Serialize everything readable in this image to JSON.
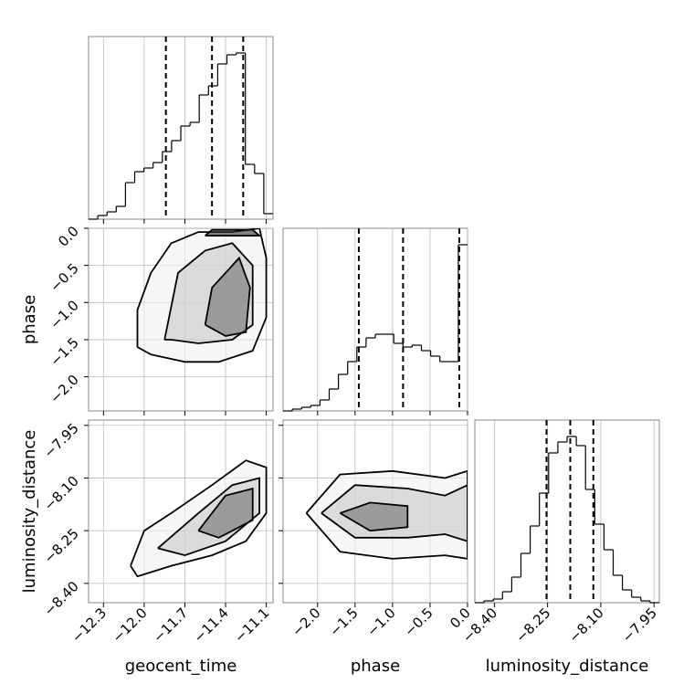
{
  "chart_data": {
    "type": "corner",
    "params": [
      {
        "label": "geocent_time",
        "lim": [
          -12.41,
          -11.05
        ],
        "ticks": [
          {
            "value": -12.3,
            "label": "−12.3"
          },
          {
            "value": -12.0,
            "label": "−12.0"
          },
          {
            "value": -11.7,
            "label": "−11.7"
          },
          {
            "value": -11.4,
            "label": "−11.4"
          },
          {
            "value": -11.1,
            "label": "−11.1"
          }
        ],
        "quantiles": [
          -11.84,
          -11.5,
          -11.27
        ],
        "bins": [
          -12.41,
          -12.342,
          -12.274,
          -12.206,
          -12.138,
          -12.07,
          -12.002,
          -11.934,
          -11.866,
          -11.798,
          -11.73,
          -11.662,
          -11.594,
          -11.526,
          -11.458,
          -11.39,
          -11.322,
          -11.254,
          -11.186,
          -11.118,
          -11.05
        ],
        "counts": [
          0,
          2,
          4,
          7,
          20,
          26,
          28,
          31,
          37,
          43,
          51,
          53,
          68,
          73,
          85,
          90,
          91,
          30,
          25,
          3
        ],
        "hist_ylim": [
          0,
          100
        ]
      },
      {
        "label": "phase",
        "lim": [
          -2.46,
          0
        ],
        "ticks": [
          {
            "value": -2.0,
            "label": "−2.0"
          },
          {
            "value": -1.5,
            "label": "−1.5"
          },
          {
            "value": -1.0,
            "label": "−1.0"
          },
          {
            "value": -0.5,
            "label": "−0.5"
          },
          {
            "value": 0,
            "label": "0.0"
          }
        ],
        "quantiles": [
          -1.45,
          -0.86,
          -0.11
        ],
        "bins": [
          -2.46,
          -2.337,
          -2.214,
          -2.091,
          -1.968,
          -1.845,
          -1.722,
          -1.599,
          -1.476,
          -1.353,
          -1.23,
          -1.107,
          -0.984,
          -0.861,
          -0.738,
          -0.615,
          -0.492,
          -0.369,
          -0.246,
          -0.123,
          0
        ],
        "counts": [
          0,
          1,
          2,
          3,
          6,
          12,
          20,
          27,
          35,
          40,
          42,
          42,
          37,
          35,
          36,
          33,
          30,
          27,
          27,
          91
        ],
        "hist_ylim": [
          0,
          100
        ]
      },
      {
        "label": "luminosity_distance",
        "lim": [
          -8.455,
          -7.935
        ],
        "ticks": [
          {
            "value": -8.4,
            "label": "−8.40"
          },
          {
            "value": -8.25,
            "label": "−8.25"
          },
          {
            "value": -8.1,
            "label": "−8.10"
          },
          {
            "value": -7.95,
            "label": "−7.95"
          }
        ],
        "quantiles": [
          -8.253,
          -8.186,
          -8.121
        ],
        "bins": [
          -8.455,
          -8.429,
          -8.403,
          -8.377,
          -8.351,
          -8.325,
          -8.299,
          -8.273,
          -8.247,
          -8.221,
          -8.195,
          -8.169,
          -8.143,
          -8.117,
          -8.091,
          -8.065,
          -8.039,
          -8.013,
          -7.987,
          -7.961,
          -7.935
        ],
        "counts": [
          0,
          1,
          2,
          6,
          14,
          27,
          42,
          60,
          82,
          88,
          91,
          86,
          62,
          43,
          29,
          15,
          7,
          3,
          1,
          0
        ],
        "hist_ylim": [
          0,
          100
        ]
      }
    ],
    "pairs": [
      {
        "x": 0,
        "y": 1,
        "contours": [
          {
            "x": [
              -12.05,
              -12.05,
              -11.95,
              -11.8,
              -11.6,
              -11.35,
              -11.15,
              -11.1,
              -11.1,
              -11.2,
              -11.45,
              -11.7,
              -11.95,
              -12.05
            ],
            "y": [
              -1.6,
              -1.1,
              -0.6,
              -0.2,
              -0.05,
              -0.05,
              0,
              -0.4,
              -1.2,
              -1.65,
              -1.8,
              -1.8,
              -1.7,
              -1.6
            ]
          },
          {
            "x": [
              -11.85,
              -11.75,
              -11.55,
              -11.35,
              -11.2,
              -11.2,
              -11.35,
              -11.6,
              -11.8,
              -11.85
            ],
            "y": [
              -1.5,
              -0.6,
              -0.3,
              -0.2,
              -0.5,
              -1.3,
              -1.5,
              -1.55,
              -1.5,
              -1.5
            ]
          },
          {
            "x": [
              -11.55,
              -11.5,
              -11.3,
              -11.22,
              -11.25,
              -11.4,
              -11.55
            ],
            "y": [
              -1.3,
              -0.8,
              -0.4,
              -0.8,
              -1.4,
              -1.45,
              -1.3
            ]
          },
          {
            "x": [
              -11.55,
              -11.5,
              -11.2,
              -11.15,
              -11.55
            ],
            "y": [
              -0.1,
              -0.02,
              -0.02,
              -0.1,
              -0.1
            ]
          }
        ]
      },
      {
        "x": 0,
        "y": 2,
        "contours": [
          {
            "x": [
              -12.1,
              -12.0,
              -11.8,
              -11.5,
              -11.25,
              -11.1,
              -11.1,
              -11.25,
              -11.5,
              -11.8,
              -12.05,
              -12.1
            ],
            "y": [
              -8.35,
              -8.25,
              -8.2,
              -8.12,
              -8.05,
              -8.07,
              -8.2,
              -8.28,
              -8.32,
              -8.35,
              -8.38,
              -8.35
            ]
          },
          {
            "x": [
              -11.9,
              -11.6,
              -11.35,
              -11.15,
              -11.15,
              -11.4,
              -11.7,
              -11.9
            ],
            "y": [
              -8.3,
              -8.2,
              -8.12,
              -8.1,
              -8.2,
              -8.28,
              -8.32,
              -8.3
            ]
          },
          {
            "x": [
              -11.6,
              -11.4,
              -11.2,
              -11.2,
              -11.45,
              -11.6
            ],
            "y": [
              -8.25,
              -8.15,
              -8.13,
              -8.22,
              -8.27,
              -8.25
            ]
          }
        ]
      },
      {
        "x": 1,
        "y": 2,
        "contours": [
          {
            "x": [
              -2.15,
              -1.7,
              -1.0,
              -0.3,
              0,
              0,
              -0.3,
              -1.0,
              -1.7,
              -2.15
            ],
            "y": [
              -8.2,
              -8.09,
              -8.08,
              -8.1,
              -8.08,
              -8.33,
              -8.32,
              -8.33,
              -8.31,
              -8.2
            ]
          },
          {
            "x": [
              -1.95,
              -1.5,
              -0.8,
              -0.3,
              0,
              0,
              -0.3,
              -0.8,
              -1.5,
              -1.95
            ],
            "y": [
              -8.2,
              -8.12,
              -8.13,
              -8.15,
              -8.12,
              -8.28,
              -8.26,
              -8.27,
              -8.27,
              -8.2
            ]
          },
          {
            "x": [
              -1.7,
              -1.3,
              -0.8,
              -0.8,
              -1.3,
              -1.7
            ],
            "y": [
              -8.2,
              -8.17,
              -8.18,
              -8.24,
              -8.25,
              -8.2
            ]
          }
        ]
      }
    ]
  }
}
